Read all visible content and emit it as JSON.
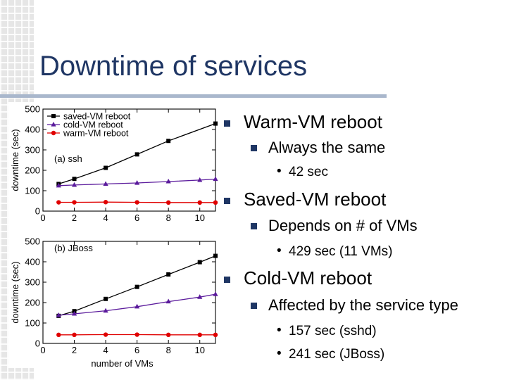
{
  "slide": {
    "title": "Downtime of services",
    "colors": {
      "title": "#1f3664",
      "rule": "#a9b7cc",
      "bullet": "#1f3664"
    }
  },
  "bullets": [
    {
      "level": 1,
      "text": "Warm-VM reboot"
    },
    {
      "level": 2,
      "text": "Always the same"
    },
    {
      "level": 3,
      "text": "42 sec"
    },
    {
      "level": 1,
      "text": "Saved-VM reboot"
    },
    {
      "level": 2,
      "text": "Depends on # of VMs"
    },
    {
      "level": 3,
      "text": "429 sec (11 VMs)"
    },
    {
      "level": 1,
      "text": "Cold-VM reboot"
    },
    {
      "level": 2,
      "text": "Affected by the service type"
    },
    {
      "level": 3,
      "text": "157 sec (sshd)"
    },
    {
      "level": 3,
      "text": "241 sec (JBoss)"
    }
  ],
  "chart_data": [
    {
      "type": "line",
      "annotation": "(a) ssh",
      "ylabel": "downtime (sec)",
      "xlabel": "",
      "xlim": [
        0,
        11
      ],
      "ylim": [
        0,
        500
      ],
      "x_ticks": [
        0,
        2,
        4,
        6,
        8,
        10
      ],
      "y_ticks": [
        0,
        100,
        200,
        300,
        400,
        500
      ],
      "legend_position": "top-left",
      "series": [
        {
          "name": "saved-VM reboot",
          "color": "#000000",
          "marker": "square",
          "x": [
            1,
            2,
            4,
            6,
            8,
            11
          ],
          "values": [
            133,
            158,
            212,
            278,
            344,
            429
          ]
        },
        {
          "name": "cold-VM reboot",
          "color": "#5b1b9c",
          "marker": "triangle",
          "x": [
            1,
            2,
            4,
            6,
            8,
            10,
            11
          ],
          "values": [
            125,
            128,
            133,
            138,
            145,
            152,
            157
          ]
        },
        {
          "name": "warm-VM reboot",
          "color": "#e00000",
          "marker": "circle",
          "x": [
            1,
            2,
            4,
            6,
            8,
            10,
            11
          ],
          "values": [
            43,
            43,
            44,
            43,
            42,
            42,
            42
          ]
        }
      ]
    },
    {
      "type": "line",
      "annotation": "(b) JBoss",
      "ylabel": "downtime (sec)",
      "xlabel": "number of VMs",
      "xlim": [
        0,
        11
      ],
      "ylim": [
        0,
        500
      ],
      "x_ticks": [
        0,
        2,
        4,
        6,
        8,
        10
      ],
      "y_ticks": [
        0,
        100,
        200,
        300,
        400,
        500
      ],
      "series": [
        {
          "name": "saved-VM reboot",
          "color": "#000000",
          "marker": "square",
          "x": [
            1,
            2,
            4,
            6,
            8,
            10,
            11
          ],
          "values": [
            135,
            158,
            218,
            277,
            338,
            398,
            429
          ]
        },
        {
          "name": "cold-VM reboot",
          "color": "#5b1b9c",
          "marker": "triangle",
          "x": [
            1,
            2,
            4,
            6,
            8,
            10,
            11
          ],
          "values": [
            138,
            145,
            160,
            180,
            205,
            227,
            241
          ]
        },
        {
          "name": "warm-VM reboot",
          "color": "#e00000",
          "marker": "circle",
          "x": [
            1,
            2,
            4,
            6,
            8,
            10,
            11
          ],
          "values": [
            42,
            42,
            43,
            43,
            42,
            42,
            42
          ]
        }
      ]
    }
  ]
}
